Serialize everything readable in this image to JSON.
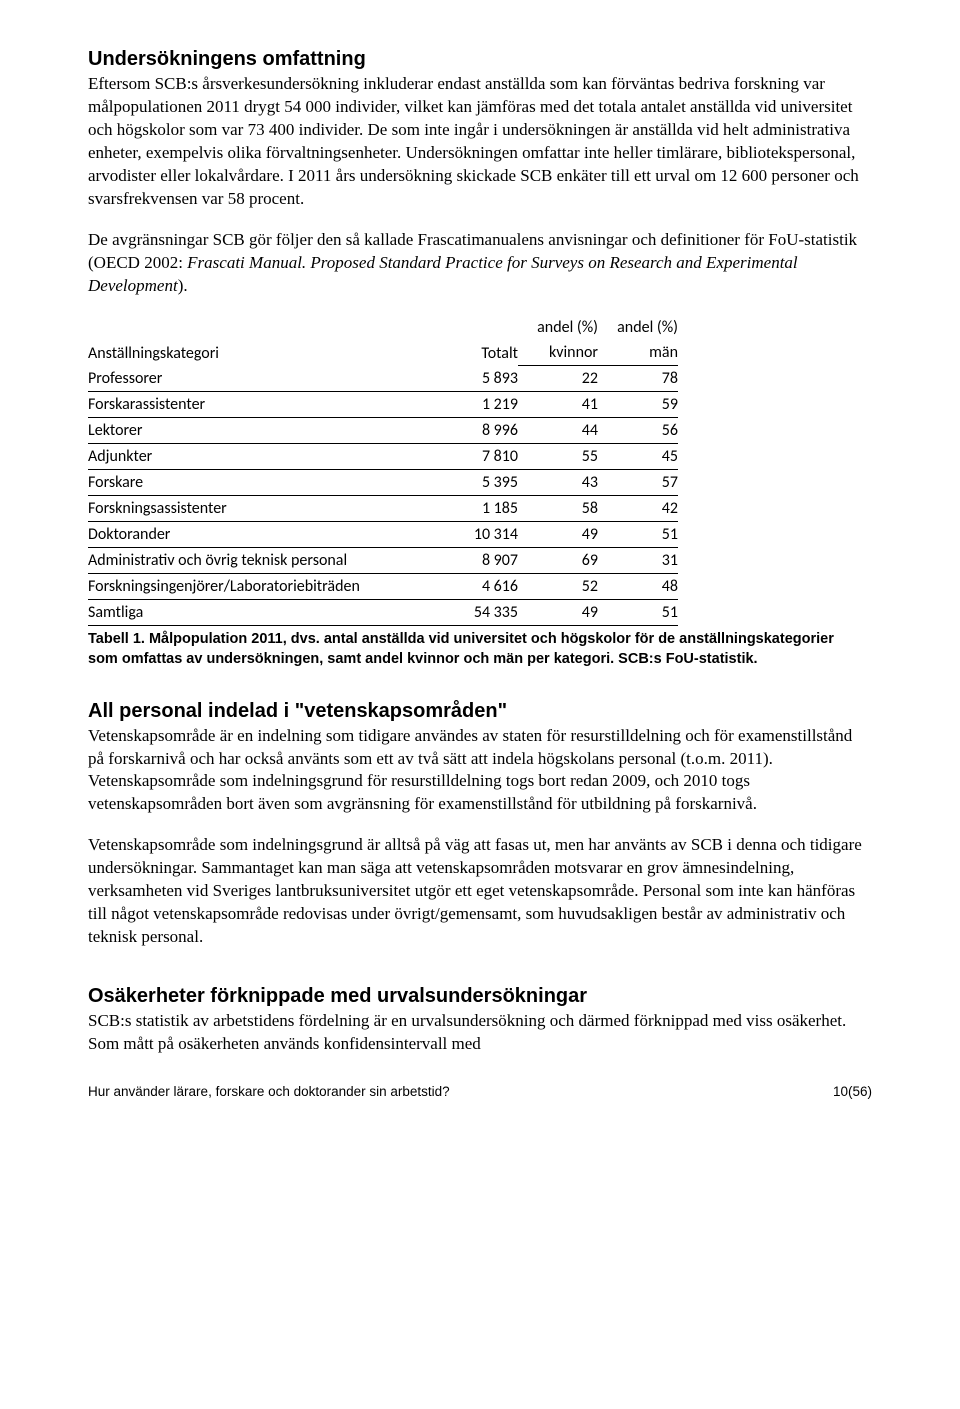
{
  "section1": {
    "heading": "Undersökningens omfattning",
    "p1": "Eftersom SCB:s årsverkesundersökning inkluderar endast anställda som kan förväntas bedriva forskning var målpopulationen 2011 drygt 54 000 individer, vilket kan jämföras med det totala antalet anställda vid universitet och högskolor som var 73 400 individer. De som inte ingår i undersökningen är anställda vid helt administrativa enheter, exempelvis olika förvaltningsenheter. Undersökningen omfattar inte heller timlärare, bibliotekspersonal, arvodister eller lokalvårdare. I 2011 års undersökning skickade SCB enkäter till ett urval om 12 600 personer och svarsfrekvensen var 58 procent.",
    "p2a": "De avgränsningar SCB gör följer den så kallade Frascatimanualens anvisningar och definitioner för FoU-statistik (OECD 2002: ",
    "p2b_italic": "Frascati Manual. Proposed Standard Practice for Surveys on Research and Experimental Development",
    "p2c": ")."
  },
  "table": {
    "header_cat": "Anställningskategori",
    "header_totalt": "Totalt",
    "header_kvin_top": "andel (%)",
    "header_kvin_bot": "kvinnor",
    "header_man_top": "andel (%)",
    "header_man_bot": "män",
    "rows": [
      {
        "cat": "Professorer",
        "tot": "5 893",
        "k": "22",
        "m": "78"
      },
      {
        "cat": "Forskarassistenter",
        "tot": "1 219",
        "k": "41",
        "m": "59"
      },
      {
        "cat": "Lektorer",
        "tot": "8 996",
        "k": "44",
        "m": "56"
      },
      {
        "cat": "Adjunkter",
        "tot": "7 810",
        "k": "55",
        "m": "45"
      },
      {
        "cat": "Forskare",
        "tot": "5 395",
        "k": "43",
        "m": "57"
      },
      {
        "cat": "Forskningsassistenter",
        "tot": "1 185",
        "k": "58",
        "m": "42"
      },
      {
        "cat": "Doktorander",
        "tot": "10 314",
        "k": "49",
        "m": "51"
      },
      {
        "cat": "Administrativ och övrig teknisk personal",
        "tot": "8 907",
        "k": "69",
        "m": "31"
      },
      {
        "cat": "Forskningsingenjörer/Laboratoriebiträden",
        "tot": "4 616",
        "k": "52",
        "m": "48"
      },
      {
        "cat": "Samtliga",
        "tot": "54 335",
        "k": "49",
        "m": "51"
      }
    ],
    "caption": "Tabell 1. Målpopulation 2011, dvs. antal anställda vid universitet och högskolor för de anställningskategorier som omfattas av undersökningen, samt andel kvinnor och män per kategori. SCB:s FoU-statistik."
  },
  "section2": {
    "heading": "All personal indelad i \"vetenskapsområden\"",
    "p1": "Vetenskapsområde är en indelning som tidigare användes av staten för resurstilldelning och för examenstillstånd på forskarnivå och har också använts som ett av två sätt att indela högskolans personal (t.o.m. 2011). Vetenskapsområde som indelningsgrund för resurstilldelning togs bort redan 2009, och 2010 togs vetenskapsområden bort även som avgränsning för examenstillstånd för utbildning på forskarnivå.",
    "p2": "Vetenskapsområde som indelningsgrund är alltså på väg att fasas ut, men har använts av SCB i denna och tidigare undersökningar. Sammantaget kan man säga att vetenskapsområden motsvarar en grov ämnesindelning, verksamheten vid Sveriges lantbruksuniversitet utgör ett eget vetenskapsområde. Personal som inte kan hänföras till något vetenskapsområde redovisas under övrigt/gemensamt, som huvudsakligen består av administrativ och teknisk personal."
  },
  "section3": {
    "heading": "Osäkerheter förknippade med urvalsundersökningar",
    "p1": "SCB:s statistik av arbetstidens fördelning är en urvalsundersökning och därmed förknippad med viss osäkerhet. Som mått på osäkerheten används konfidensintervall med"
  },
  "footer": {
    "left": "Hur använder lärare, forskare och doktorander sin arbetstid?",
    "right": "10(56)"
  }
}
